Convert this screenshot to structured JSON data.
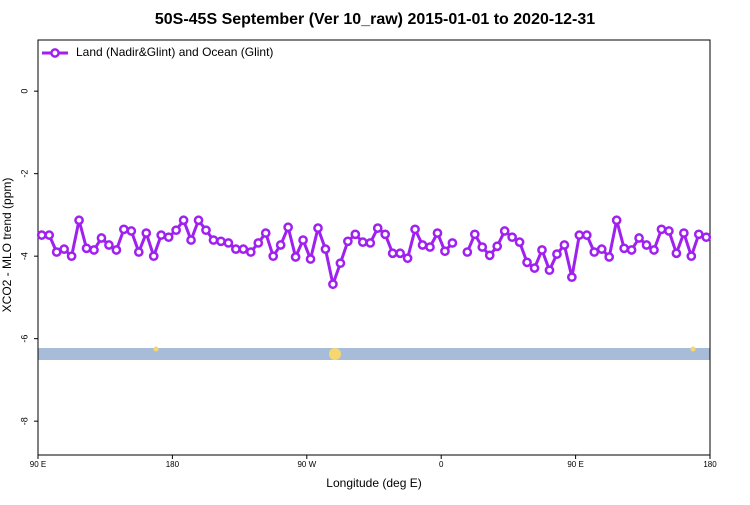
{
  "chart_data": {
    "type": "line",
    "title": "50S-45S September (Ver 10_raw)   2015-01-01 to 2020-12-31",
    "x_label": "Longitude (deg E)",
    "y_label": "XCO2 - MLO trend (ppm)",
    "x": [
      92.5,
      97.5,
      102.5,
      107.5,
      112.5,
      117.5,
      122.5,
      127.5,
      132.5,
      137.5,
      142.5,
      147.5,
      152.5,
      157.5,
      162.5,
      167.5,
      172.5,
      177.5,
      182.5,
      187.5,
      192.5,
      197.5,
      202.5,
      207.5,
      212.5,
      217.5,
      222.5,
      227.5,
      232.5,
      237.5,
      242.5,
      247.5,
      252.5,
      257.5,
      262.5,
      267.5,
      272.5,
      277.5,
      282.5,
      287.5,
      292.5,
      297.5,
      302.5,
      307.5,
      312.5,
      317.5,
      322.5,
      327.5,
      332.5,
      337.5,
      342.5,
      347.5,
      352.5,
      357.5,
      362.5,
      367.5,
      372.5,
      377.5,
      382.5,
      387.5,
      392.5,
      397.5,
      402.5,
      407.5,
      412.5,
      417.5,
      422.5,
      427.5,
      432.5,
      437.5,
      442.5,
      447.5,
      452.5,
      457.5,
      462.5,
      467.5,
      472.5,
      477.5,
      482.5,
      487.5,
      492.5,
      497.5,
      502.5,
      507.5,
      512.5,
      517.5,
      522.5,
      527.5,
      532.5,
      537.5
    ],
    "series": [
      {
        "name": "Land (Nadir&Glint) and Ocean (Glint)",
        "color": "#a020f0",
        "values": [
          -3.49,
          -3.49,
          -3.9,
          -3.83,
          -4.0,
          -3.13,
          -3.81,
          -3.85,
          -3.56,
          -3.73,
          -3.85,
          -3.35,
          -3.39,
          -3.9,
          -3.44,
          -4.0,
          -3.49,
          -3.54,
          -3.37,
          -3.13,
          -3.61,
          -3.13,
          -3.37,
          -3.61,
          -3.64,
          -3.68,
          -3.83,
          -3.83,
          -3.9,
          -3.68,
          -3.44,
          -4.0,
          -3.73,
          -3.3,
          -4.02,
          -3.61,
          -4.07,
          -3.32,
          -3.83,
          -4.68,
          -4.17,
          -3.64,
          -3.47,
          -3.66,
          -3.68,
          -3.32,
          -3.47,
          -3.93,
          -3.93,
          -4.05,
          -3.35,
          -3.73,
          -3.78,
          -3.44,
          -3.88,
          -3.68,
          null,
          -3.9,
          -3.47,
          -3.78,
          -3.98,
          -3.76,
          -3.39,
          -3.54,
          -3.66,
          -4.15,
          -4.29,
          -3.85,
          -4.34,
          -3.95,
          -3.73,
          -4.51,
          -3.49,
          -3.49,
          -3.9,
          -3.83,
          -4.02,
          -3.13,
          -3.81,
          -3.85,
          -3.56,
          -3.73,
          -3.85,
          -3.35,
          -3.39,
          -3.93,
          -3.44,
          -4.0,
          -3.47,
          -3.54
        ]
      }
    ],
    "xlim": [
      90,
      540
    ],
    "xticks": [
      {
        "value": 90,
        "label": "90 E"
      },
      180,
      {
        "value": 270,
        "label": "90 W"
      },
      {
        "value": 360,
        "label": "0"
      },
      {
        "value": 450,
        "label": "90 E"
      },
      {
        "value": 540,
        "label": "180"
      }
    ],
    "ylim": [
      -8.82,
      1.24
    ],
    "yticks": [
      0,
      -2,
      -4,
      -6,
      -8
    ],
    "legend": "top-left"
  }
}
